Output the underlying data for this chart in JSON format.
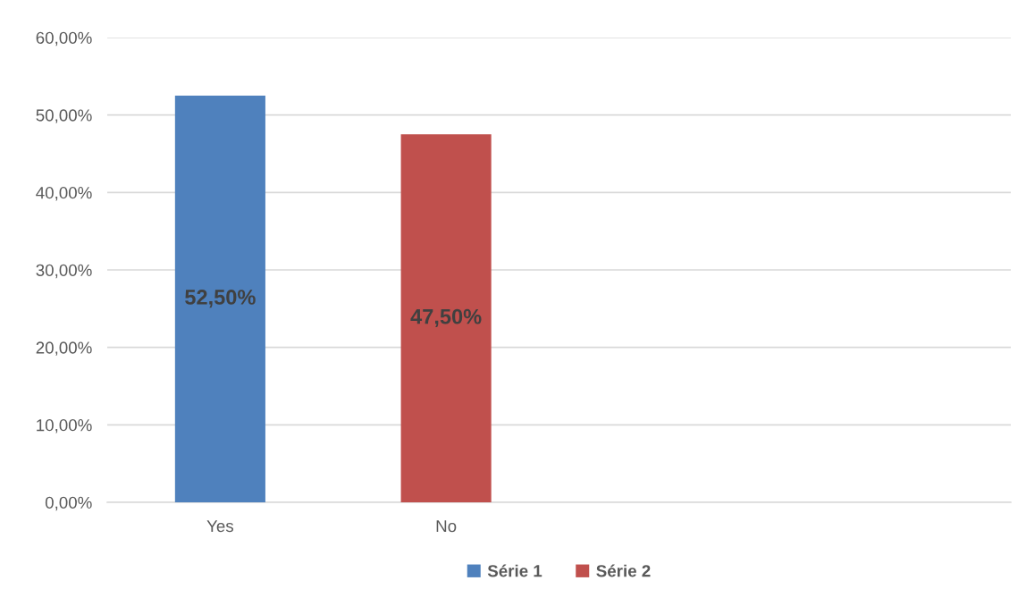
{
  "chart_data": {
    "type": "bar",
    "stacked": true,
    "categories": [
      "Yes",
      "No",
      null,
      null
    ],
    "series": [
      {
        "name": "Série 1",
        "color": "#4f81bd",
        "values": [
          52.5,
          null,
          null,
          null
        ],
        "value_labels": [
          "52,50%",
          null,
          null,
          null
        ]
      },
      {
        "name": "Série 2",
        "color": "#c0504d",
        "values": [
          null,
          47.5,
          null,
          null
        ],
        "value_labels": [
          null,
          "47,50%",
          null,
          null
        ]
      }
    ],
    "ylim": [
      0,
      60
    ],
    "yticks": [
      {
        "value": 0,
        "label": "0,00%"
      },
      {
        "value": 10,
        "label": "10,00%"
      },
      {
        "value": 20,
        "label": "20,00%"
      },
      {
        "value": 30,
        "label": "30,00%"
      },
      {
        "value": 40,
        "label": "40,00%"
      },
      {
        "value": 50,
        "label": "50,00%"
      },
      {
        "value": 60,
        "label": "60,00%"
      }
    ],
    "grid": "y",
    "legend": "bottom"
  }
}
